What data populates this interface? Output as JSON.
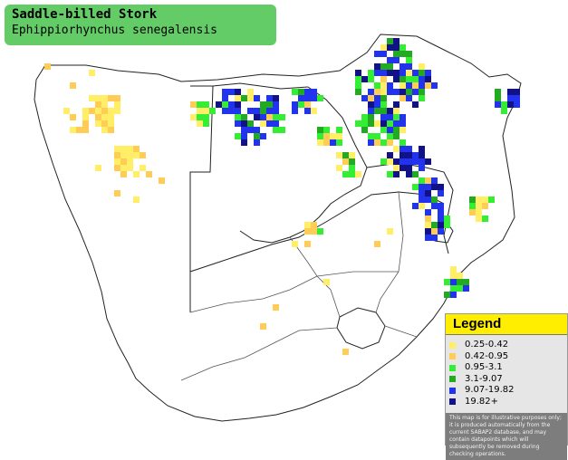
{
  "title": {
    "common_name": "Saddle-billed Stork",
    "scientific_name": "Ephippiorhynchus senegalensis"
  },
  "legend": {
    "heading": "Legend",
    "items": [
      {
        "label": "0.25-0.42",
        "color": "#ffee66"
      },
      {
        "label": "0.42-0.95",
        "color": "#ffcc55"
      },
      {
        "label": "0.95-3.1",
        "color": "#33ee33"
      },
      {
        "label": "3.1-9.07",
        "color": "#22aa22"
      },
      {
        "label": "9.07-19.82",
        "color": "#2233ee"
      },
      {
        "label": "19.82+",
        "color": "#111188"
      }
    ],
    "note": "This map is for illustrative purposes only; it is produced automatically from the current SABAP2 database, and may contain datapoints which will subsequently be removed during checking operations."
  },
  "map": {
    "line_color": "#222222",
    "land_color": "#ffffff"
  }
}
